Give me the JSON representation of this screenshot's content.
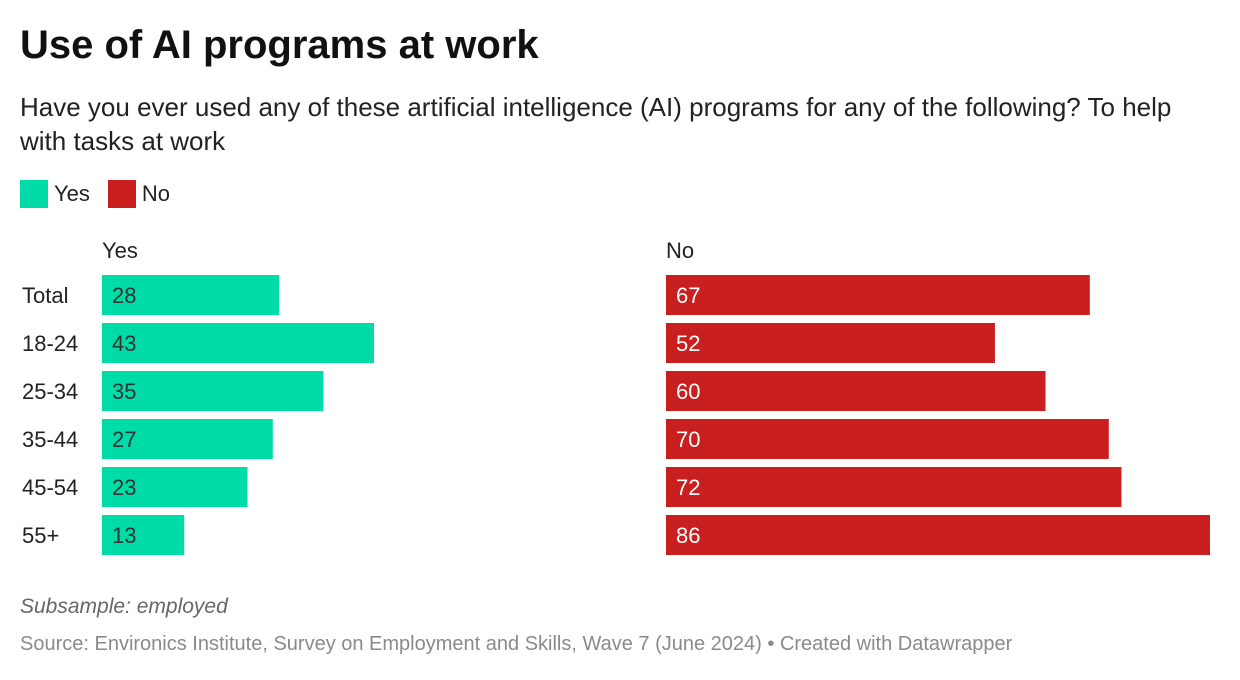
{
  "title": "Use of AI programs at work",
  "subtitle": "Have you ever used any of these artificial intelligence (AI) programs for any of the following? To help with tasks at work",
  "legend": [
    {
      "label": "Yes",
      "color": "#00dba8"
    },
    {
      "label": "No",
      "color": "#c91f1f"
    }
  ],
  "note": "Subsample: employed",
  "source": "Source: Environics Institute, Survey on Employment and Skills, Wave 7 (June 2024) • Created with Datawrapper",
  "chart_data": {
    "type": "bar",
    "orientation": "horizontal",
    "layout": "split-panels",
    "title": "Use of AI programs at work",
    "categories": [
      "Total",
      "18-24",
      "25-34",
      "35-44",
      "45-54",
      "55+"
    ],
    "series": [
      {
        "name": "Yes",
        "color": "#00dba8",
        "label_color": "#333333",
        "values": [
          28,
          43,
          35,
          27,
          23,
          13
        ]
      },
      {
        "name": "No",
        "color": "#c91f1f",
        "label_color": "#ffffff",
        "values": [
          67,
          52,
          60,
          70,
          72,
          86
        ]
      }
    ],
    "xlim": [
      0,
      86
    ],
    "grid": false,
    "legend_position": "top-left"
  }
}
